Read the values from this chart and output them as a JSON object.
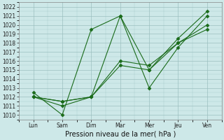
{
  "background_color": "#cde8e8",
  "grid_color": "#9bbfbf",
  "line_color": "#1a6b1a",
  "xlabel": "Pression niveau de la mer( hPa )",
  "ylim": [
    1009.5,
    1022.5
  ],
  "yticks": [
    1010,
    1011,
    1012,
    1013,
    1014,
    1015,
    1016,
    1017,
    1018,
    1019,
    1020,
    1021,
    1022
  ],
  "x_labels": [
    "Lun",
    "Sam",
    "Dim",
    "Mar",
    "Mer",
    "Jeu",
    "Ven"
  ],
  "series": [
    {
      "x": [
        0,
        1,
        2,
        3,
        4,
        5,
        6
      ],
      "y": [
        1012.0,
        1011.0,
        1012.0,
        1021.0,
        1015.0,
        1018.5,
        1021.5
      ]
    },
    {
      "x": [
        0,
        1,
        2,
        3,
        4,
        5,
        6
      ],
      "y": [
        1012.5,
        1010.0,
        1019.5,
        1021.0,
        1013.0,
        1017.5,
        1021.0
      ]
    },
    {
      "x": [
        0,
        1,
        2,
        3,
        4,
        5,
        6
      ],
      "y": [
        1012.0,
        1011.5,
        1012.0,
        1016.0,
        1015.5,
        1018.0,
        1020.0
      ]
    },
    {
      "x": [
        0,
        1,
        2,
        3,
        4,
        5,
        6
      ],
      "y": [
        1012.0,
        1011.5,
        1012.0,
        1015.5,
        1015.0,
        1018.0,
        1019.5
      ]
    }
  ],
  "marker": "D",
  "markersize": 2.5,
  "linewidth": 0.8,
  "tick_fontsize": 5.5,
  "xlabel_fontsize": 7
}
